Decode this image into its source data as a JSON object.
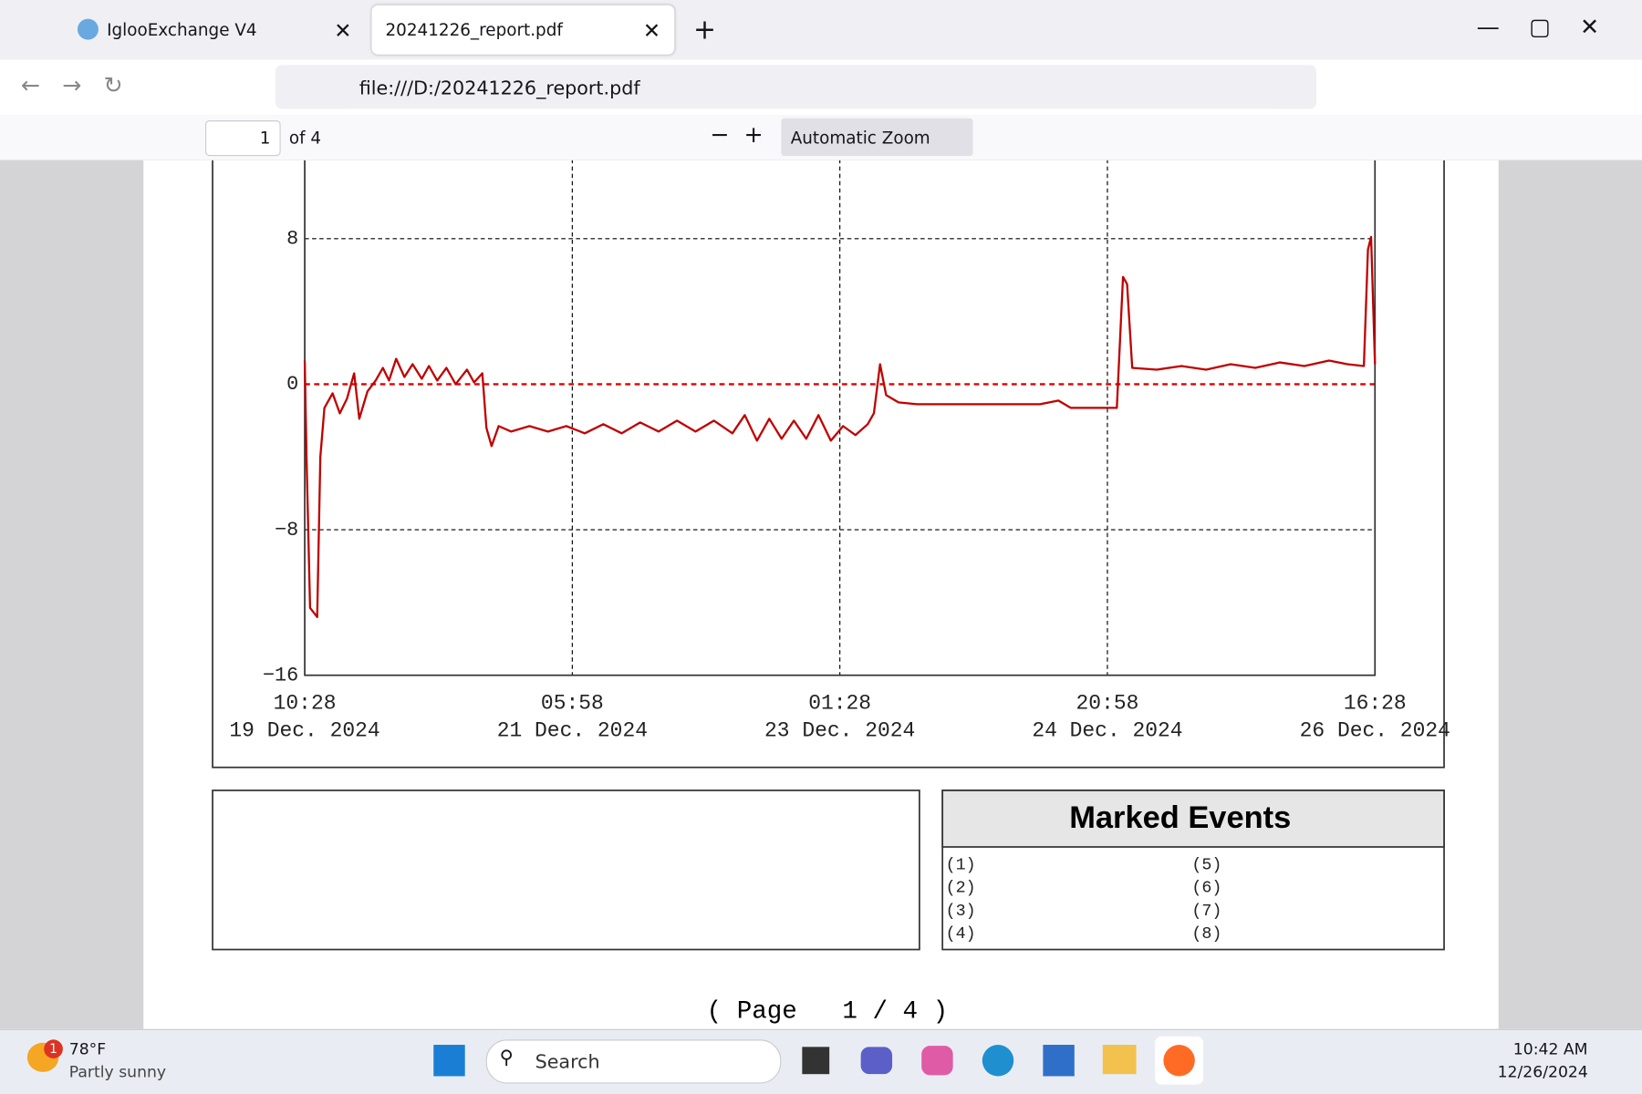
{
  "browser": {
    "tabs": [
      "IglooExchange V4",
      "20241226_report.pdf"
    ],
    "url": "file:///D:/20241226_report.pdf"
  },
  "pdf_toolbar": {
    "page_number": "1",
    "page_count": "of 4",
    "zoom": "Automatic Zoom"
  },
  "chart_data": {
    "type": "line",
    "x": [
      "2024-12-19T10:28",
      "2024-12-19T10:45",
      "2024-12-19T11:20",
      "2024-12-19T12:30",
      "2024-12-19T13:00",
      "2024-12-19T13:40",
      "2024-12-19T15:00",
      "2024-12-19T16:10",
      "2024-12-19T17:20",
      "2024-12-19T18:30",
      "2024-12-19T19:20",
      "2024-12-19T20:40",
      "2024-12-19T22:00",
      "2024-12-19T23:10",
      "2024-12-20T00:10",
      "2024-12-20T01:20",
      "2024-12-20T02:40",
      "2024-12-20T04:00",
      "2024-12-20T05:30",
      "2024-12-20T06:40",
      "2024-12-20T08:00",
      "2024-12-20T09:30",
      "2024-12-20T11:00",
      "2024-12-20T12:50",
      "2024-12-20T14:00",
      "2024-12-20T15:20",
      "2024-12-20T16:00",
      "2024-12-20T16:50",
      "2024-12-20T18:00",
      "2024-12-20T20:00",
      "2024-12-20T23:00",
      "2024-12-21T02:00",
      "2024-12-21T05:00",
      "2024-12-21T08:00",
      "2024-12-21T11:00",
      "2024-12-21T14:00",
      "2024-12-21T17:00",
      "2024-12-21T20:00",
      "2024-12-21T23:00",
      "2024-12-22T02:00",
      "2024-12-22T05:00",
      "2024-12-22T08:00",
      "2024-12-22T10:00",
      "2024-12-22T12:00",
      "2024-12-22T14:00",
      "2024-12-22T16:00",
      "2024-12-22T18:00",
      "2024-12-22T20:00",
      "2024-12-22T22:00",
      "2024-12-23T00:00",
      "2024-12-23T02:00",
      "2024-12-23T04:00",
      "2024-12-23T06:00",
      "2024-12-23T07:00",
      "2024-12-23T08:00",
      "2024-12-23T09:00",
      "2024-12-23T11:00",
      "2024-12-23T14:00",
      "2024-12-23T20:00",
      "2024-12-24T03:00",
      "2024-12-24T10:00",
      "2024-12-24T13:00",
      "2024-12-24T15:00",
      "2024-12-24T22:30",
      "2024-12-24T23:30",
      "2024-12-25T00:10",
      "2024-12-25T01:00",
      "2024-12-25T05:00",
      "2024-12-25T09:00",
      "2024-12-25T13:00",
      "2024-12-25T17:00",
      "2024-12-25T21:00",
      "2024-12-26T01:00",
      "2024-12-26T05:00",
      "2024-12-26T09:00",
      "2024-12-26T12:00",
      "2024-12-26T14:40",
      "2024-12-26T15:20",
      "2024-12-26T15:50",
      "2024-12-26T16:28"
    ],
    "series": [
      {
        "color": "#c00000",
        "values": [
          1.3,
          -4.0,
          -12.3,
          -12.8,
          -4.0,
          -1.3,
          -0.5,
          -1.6,
          -0.8,
          0.6,
          -1.9,
          -0.4,
          0.2,
          0.9,
          0.2,
          1.4,
          0.4,
          1.1,
          0.3,
          1.0,
          0.2,
          0.9,
          0.0,
          0.8,
          0.1,
          0.6,
          -2.4,
          -3.4,
          -2.3,
          -2.6,
          -2.3,
          -2.6,
          -2.3,
          -2.7,
          -2.2,
          -2.7,
          -2.1,
          -2.6,
          -2.0,
          -2.6,
          -2.0,
          -2.7,
          -1.7,
          -3.1,
          -1.9,
          -3.0,
          -2.0,
          -3.0,
          -1.7,
          -3.1,
          -2.3,
          -2.8,
          -2.2,
          -1.6,
          1.1,
          -0.6,
          -1.0,
          -1.1,
          -1.1,
          -1.1,
          -1.1,
          -0.9,
          -1.3,
          -1.3,
          5.9,
          5.5,
          0.9,
          0.8,
          1.0,
          0.8,
          1.1,
          0.9,
          1.2,
          1.0,
          1.3,
          1.1,
          1.0,
          7.4,
          8.1,
          1.1
        ]
      }
    ],
    "xlim": [
      "2024-12-19T10:28",
      "2024-12-26T16:28"
    ],
    "xticks": [
      {
        "value": "2024-12-19T10:28",
        "label": [
          "10:28",
          "19 Dec. 2024"
        ]
      },
      {
        "value": "2024-12-21T05:58",
        "label": [
          "05:58",
          "21 Dec. 2024"
        ]
      },
      {
        "value": "2024-12-23T01:28",
        "label": [
          "01:28",
          "23 Dec. 2024"
        ]
      },
      {
        "value": "2024-12-24T20:58",
        "label": [
          "20:58",
          "24 Dec. 2024"
        ]
      },
      {
        "value": "2024-12-26T16:28",
        "label": [
          "16:28",
          "26 Dec. 2024"
        ]
      }
    ],
    "ylim": [
      -16,
      16
    ],
    "yticks": [
      {
        "value": -16,
        "label": "−16"
      },
      {
        "value": -8,
        "label": "−8"
      },
      0,
      8
    ],
    "grid": true,
    "reference_line": {
      "value": 0,
      "color": "#e00000"
    }
  },
  "marked_events": {
    "title": "Marked Events",
    "items": [
      "(1)",
      "(2)",
      "(3)",
      "(4)",
      "(5)",
      "(6)",
      "(7)",
      "(8)"
    ]
  },
  "footer": "( Page   1 / 4 )",
  "taskbar": {
    "weather_badge": "1",
    "temperature": "78°F",
    "condition": "Partly sunny",
    "search": "Search",
    "time": "10:42 AM",
    "date": "12/26/2024"
  }
}
